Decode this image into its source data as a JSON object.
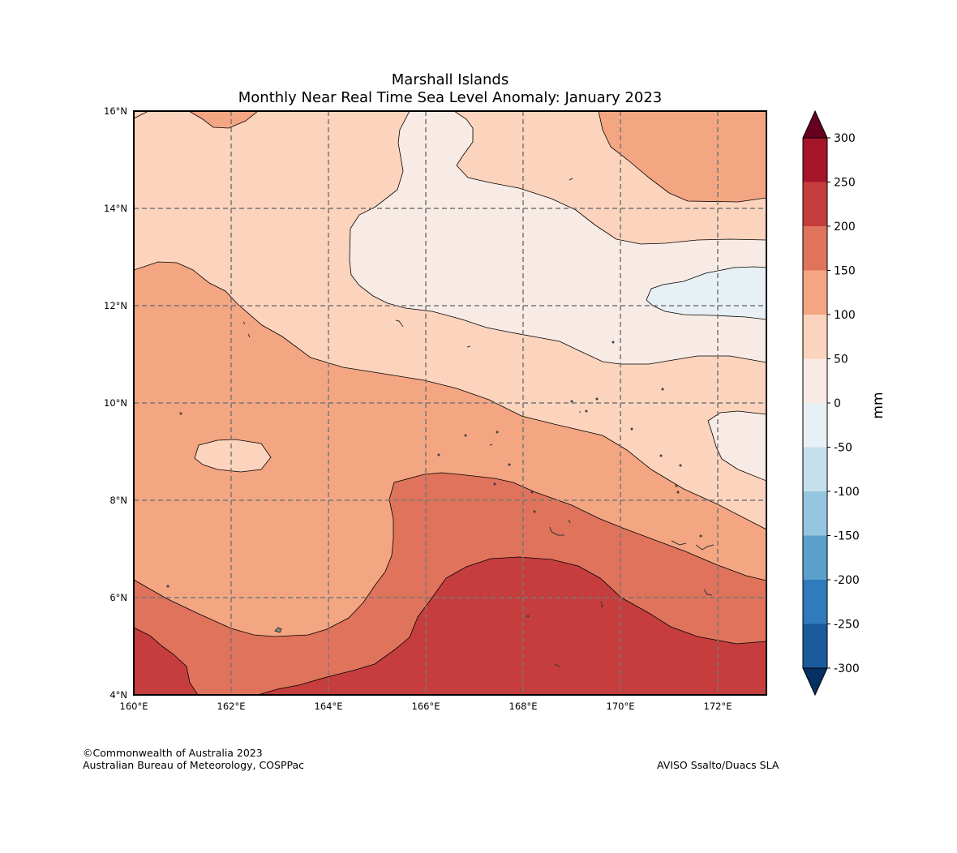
{
  "title": {
    "line1": "Marshall Islands",
    "line2": "Monthly Near Real Time Sea Level Anomaly: January 2023"
  },
  "footer": {
    "copyright": "©Commonwealth of Australia 2023",
    "agency": "Australian Bureau of Meteorology, COSPPac",
    "source": "AVISO Ssalto/Duacs SLA"
  },
  "map": {
    "lon_range": [
      160,
      173
    ],
    "lat_range": [
      4,
      16
    ],
    "lon_ticks": [
      {
        "value": 160,
        "label": "160°E"
      },
      {
        "value": 162,
        "label": "162°E"
      },
      {
        "value": 164,
        "label": "164°E"
      },
      {
        "value": 166,
        "label": "166°E"
      },
      {
        "value": 168,
        "label": "168°E"
      },
      {
        "value": 170,
        "label": "170°E"
      },
      {
        "value": 172,
        "label": "172°E"
      }
    ],
    "lat_ticks": [
      {
        "value": 4,
        "label": "4°N"
      },
      {
        "value": 6,
        "label": "6°N"
      },
      {
        "value": 8,
        "label": "8°N"
      },
      {
        "value": 10,
        "label": "10°N"
      },
      {
        "value": 12,
        "label": "12°N"
      },
      {
        "value": 14,
        "label": "14°N"
      },
      {
        "value": 16,
        "label": "16°N"
      }
    ],
    "colors": {
      "0_50": "#f8ebe5",
      "50_100": "#fcd3bd",
      "100_150": "#f4a683",
      "150_200": "#e0735c",
      "200_250": "#c53e3d",
      "-50_0": "#e7f0f4",
      "grid": "#777777",
      "contour": "#000000"
    }
  },
  "colorbar": {
    "unit": "mm",
    "ticks": [
      "300",
      "250",
      "200",
      "150",
      "100",
      "50",
      "0",
      "-50",
      "-100",
      "-150",
      "-200",
      "-250",
      "-300"
    ],
    "colors": [
      "#a51429",
      "#c53e3d",
      "#e0735c",
      "#f4a683",
      "#fcd3bd",
      "#f8ebe5",
      "#e7f0f4",
      "#c6dfed",
      "#95c5df",
      "#5aa0cd",
      "#2f7bbb",
      "#1b5a9b"
    ],
    "extend_top_color": "#67001f",
    "extend_bottom_color": "#053061"
  }
}
